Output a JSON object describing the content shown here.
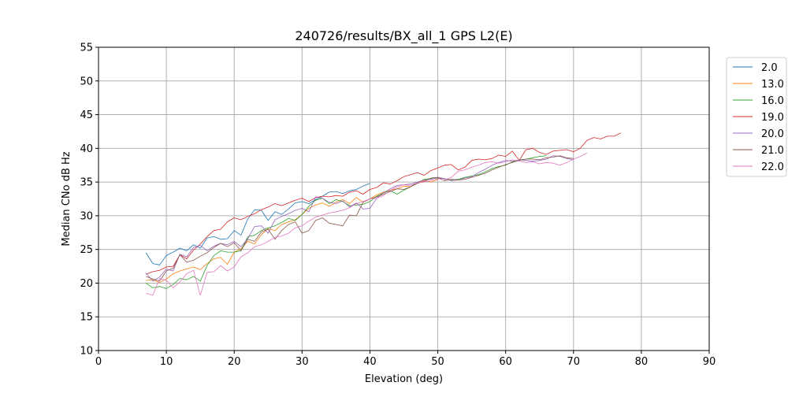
{
  "chart_data": {
    "type": "line",
    "title": "240726/results/BX_all_1 GPS L2(E)",
    "xlabel": "Elevation (deg)",
    "ylabel": "Median CNo dB Hz",
    "xlim": [
      0,
      90
    ],
    "ylim": [
      10,
      55
    ],
    "xticks": [
      0,
      10,
      20,
      30,
      40,
      50,
      60,
      70,
      80,
      90
    ],
    "yticks": [
      10,
      15,
      20,
      25,
      30,
      35,
      40,
      45,
      50,
      55
    ],
    "grid": true,
    "legend_position": "upper-right-outside",
    "series": [
      {
        "name": "2.0",
        "color": "#1f77b4",
        "x": [
          7,
          8,
          9,
          10,
          11,
          12,
          13,
          14,
          15,
          16,
          17,
          18,
          19,
          20,
          21,
          22,
          23,
          24,
          25,
          26,
          27,
          28,
          29,
          30,
          31,
          32,
          33,
          34,
          35,
          36,
          37,
          38,
          39,
          40
        ],
        "y": [
          24.5,
          22.9,
          22.7,
          24.1,
          24.6,
          25.2,
          24.8,
          25.7,
          25.2,
          26.7,
          26.9,
          26.5,
          26.6,
          27.8,
          27.1,
          29.5,
          30.9,
          30.8,
          29.3,
          30.6,
          30.2,
          31.0,
          31.9,
          32.1,
          31.8,
          32.4,
          32.9,
          33.5,
          33.6,
          33.3,
          33.7,
          33.9,
          34.4,
          34.8
        ]
      },
      {
        "name": "13.0",
        "color": "#ff7f0e",
        "x": [
          7,
          8,
          9,
          10,
          11,
          12,
          13,
          14,
          15,
          16,
          17,
          18,
          19,
          20,
          21,
          22,
          23,
          24,
          25,
          26,
          27,
          28,
          29,
          30,
          31,
          32,
          33,
          34,
          35,
          36,
          37,
          38,
          39,
          40,
          41,
          42,
          43,
          44,
          45,
          46,
          47,
          48,
          49,
          50
        ],
        "y": [
          20.4,
          20.5,
          20.1,
          20.6,
          21.4,
          21.8,
          22.1,
          22.4,
          22.0,
          22.9,
          23.6,
          23.8,
          22.8,
          24.6,
          25.1,
          26.2,
          25.8,
          27.2,
          28.1,
          27.8,
          28.7,
          29.1,
          29.4,
          30.2,
          31.1,
          31.6,
          31.9,
          31.4,
          32.0,
          32.4,
          31.8,
          32.7,
          32.0,
          32.5,
          33.1,
          33.5,
          33.8,
          34.0,
          34.4,
          34.3,
          34.9,
          35.2,
          35.0,
          35.4
        ]
      },
      {
        "name": "16.0",
        "color": "#2ca02c",
        "x": [
          7,
          8,
          9,
          10,
          11,
          12,
          13,
          14,
          15,
          16,
          17,
          18,
          19,
          20,
          21,
          22,
          23,
          24,
          25,
          26,
          27,
          28,
          29,
          30,
          31,
          32,
          33,
          34,
          35,
          36,
          37,
          38,
          39,
          40,
          41,
          42,
          43,
          44,
          45,
          46,
          47,
          48,
          49,
          50,
          51,
          52,
          53,
          54,
          55,
          56,
          57,
          58,
          59,
          60,
          61,
          62,
          63,
          64,
          65,
          66
        ],
        "y": [
          20.0,
          19.3,
          19.5,
          19.2,
          19.8,
          20.7,
          20.5,
          21.0,
          20.3,
          22.6,
          24.1,
          24.8,
          24.6,
          24.6,
          24.8,
          26.9,
          27.1,
          27.8,
          28.2,
          28.5,
          29.0,
          29.6,
          29.3,
          30.2,
          31.4,
          32.3,
          32.6,
          31.8,
          32.4,
          32.1,
          31.5,
          31.6,
          31.7,
          32.1,
          32.9,
          33.4,
          33.7,
          33.2,
          33.8,
          34.3,
          34.9,
          35.4,
          35.5,
          35.6,
          35.5,
          35.3,
          35.4,
          35.7,
          35.9,
          36.1,
          36.5,
          37.0,
          37.3,
          37.5,
          38.0,
          38.3,
          38.4,
          38.6,
          38.8,
          38.9
        ]
      },
      {
        "name": "19.0",
        "color": "#d62728",
        "x": [
          7,
          8,
          9,
          10,
          11,
          12,
          13,
          14,
          15,
          16,
          17,
          18,
          19,
          20,
          21,
          22,
          23,
          24,
          25,
          26,
          27,
          28,
          29,
          30,
          31,
          32,
          33,
          34,
          35,
          36,
          37,
          38,
          39,
          40,
          41,
          42,
          43,
          44,
          45,
          46,
          47,
          48,
          49,
          50,
          51,
          52,
          53,
          54,
          55,
          56,
          57,
          58,
          59,
          60,
          61,
          62,
          63,
          64,
          65,
          66,
          67,
          68,
          69,
          70,
          71,
          72,
          73,
          74,
          75,
          76,
          77
        ],
        "y": [
          21.3,
          21.7,
          21.9,
          22.4,
          22.5,
          24.2,
          23.6,
          24.9,
          25.8,
          26.9,
          27.8,
          28.0,
          29.1,
          29.7,
          29.4,
          29.9,
          30.3,
          30.9,
          31.3,
          31.8,
          31.5,
          31.9,
          32.3,
          32.6,
          32.1,
          32.7,
          32.9,
          32.8,
          33.0,
          32.9,
          33.5,
          33.7,
          33.2,
          33.9,
          34.2,
          34.9,
          34.7,
          35.2,
          35.8,
          36.1,
          36.4,
          36.0,
          36.7,
          37.1,
          37.5,
          37.6,
          36.8,
          37.2,
          38.2,
          38.4,
          38.3,
          38.5,
          39.0,
          38.8,
          39.6,
          38.2,
          39.8,
          40.0,
          39.4,
          39.1,
          39.6,
          39.7,
          39.8,
          39.5,
          40.0,
          41.2,
          41.6,
          41.4,
          41.8,
          41.8,
          42.3
        ]
      },
      {
        "name": "20.0",
        "color": "#9467bd",
        "x": [
          7,
          8,
          9,
          10,
          11,
          12,
          13,
          14,
          15,
          16,
          17,
          18,
          19,
          20,
          21,
          22,
          23,
          24,
          25,
          26,
          27,
          28,
          29,
          30,
          31,
          32,
          33,
          34,
          35,
          36,
          37,
          38,
          39,
          40,
          41,
          42,
          43,
          44,
          45,
          46,
          47,
          48,
          49,
          50,
          51,
          52,
          53,
          54,
          55,
          56,
          57,
          58,
          59,
          60,
          61,
          62,
          63,
          64,
          65,
          66,
          67,
          68,
          69,
          70
        ],
        "y": [
          21.5,
          20.3,
          20.9,
          22.1,
          21.8,
          24.3,
          23.9,
          25.3,
          25.6,
          24.8,
          25.5,
          25.9,
          25.7,
          26.2,
          25.4,
          26.6,
          28.4,
          28.5,
          27.4,
          29.4,
          29.9,
          30.3,
          30.8,
          31.1,
          30.6,
          32.8,
          32.6,
          32.0,
          31.8,
          32.2,
          31.3,
          31.9,
          31.0,
          31.1,
          32.6,
          33.4,
          34.0,
          34.5,
          34.6,
          34.7,
          35.0,
          35.3,
          35.4,
          35.7,
          35.5,
          35.2,
          35.3,
          35.6,
          35.8,
          36.4,
          36.9,
          37.5,
          37.9,
          38.2,
          38.1,
          38.3,
          38.2,
          38.1,
          38.2,
          38.4,
          38.9,
          38.8,
          38.5,
          38.3
        ]
      },
      {
        "name": "21.0",
        "color": "#8c564b",
        "x": [
          7,
          8,
          9,
          10,
          11,
          12,
          13,
          14,
          15,
          16,
          17,
          18,
          19,
          20,
          21,
          22,
          23,
          24,
          25,
          26,
          27,
          28,
          29,
          30,
          31,
          32,
          33,
          34,
          35,
          36,
          37,
          38,
          39,
          40,
          41,
          42,
          43,
          44,
          45,
          46,
          47,
          48,
          49,
          50,
          51,
          52,
          53,
          54,
          55,
          56,
          57,
          58,
          59,
          60,
          61,
          62,
          63,
          64,
          65,
          66,
          67,
          68,
          69,
          70
        ],
        "y": [
          21.0,
          20.6,
          20.3,
          21.8,
          22.2,
          24.2,
          23.1,
          23.4,
          24.0,
          24.5,
          25.3,
          25.9,
          25.4,
          26.0,
          24.8,
          26.5,
          26.2,
          27.6,
          28.0,
          26.5,
          27.8,
          28.7,
          29.1,
          27.4,
          27.8,
          29.3,
          29.7,
          28.9,
          28.7,
          28.5,
          30.1,
          30.0,
          32.0,
          32.5,
          32.8,
          33.2,
          33.6,
          34.0,
          33.9,
          34.3,
          34.8,
          35.1,
          35.6,
          35.7,
          35.2,
          35.4,
          35.3,
          35.4,
          35.7,
          36.0,
          36.3,
          36.8,
          37.2,
          37.6,
          37.9,
          38.2,
          38.4,
          38.4,
          38.3,
          38.6,
          38.7,
          38.9,
          38.6,
          38.5
        ]
      },
      {
        "name": "22.0",
        "color": "#e377c2",
        "x": [
          7,
          8,
          9,
          10,
          11,
          12,
          13,
          14,
          15,
          16,
          17,
          18,
          19,
          20,
          21,
          22,
          23,
          24,
          25,
          26,
          27,
          28,
          29,
          30,
          31,
          32,
          33,
          34,
          35,
          36,
          37,
          38,
          39,
          40,
          41,
          42,
          43,
          44,
          45,
          46,
          47,
          48,
          49,
          50,
          51,
          52,
          53,
          54,
          55,
          56,
          57,
          58,
          59,
          60,
          61,
          62,
          63,
          64,
          65,
          66,
          67,
          68,
          69,
          70,
          71,
          72
        ],
        "y": [
          18.5,
          18.2,
          20.7,
          20.4,
          19.3,
          20.2,
          21.4,
          21.9,
          18.2,
          21.6,
          21.7,
          22.6,
          21.8,
          22.4,
          23.9,
          24.5,
          25.4,
          25.7,
          26.2,
          26.8,
          27.0,
          27.4,
          28.2,
          28.5,
          29.2,
          29.8,
          30.1,
          30.4,
          30.6,
          30.8,
          31.2,
          31.8,
          32.1,
          32.5,
          32.6,
          33.0,
          33.8,
          34.3,
          34.6,
          34.5,
          34.9,
          35.0,
          35.2,
          35.5,
          35.3,
          35.7,
          36.6,
          36.8,
          37.2,
          37.5,
          37.9,
          38.0,
          37.8,
          38.0,
          38.3,
          38.1,
          37.9,
          38.0,
          37.7,
          37.9,
          37.8,
          37.5,
          37.9,
          38.4,
          38.8,
          39.3
        ]
      }
    ]
  }
}
